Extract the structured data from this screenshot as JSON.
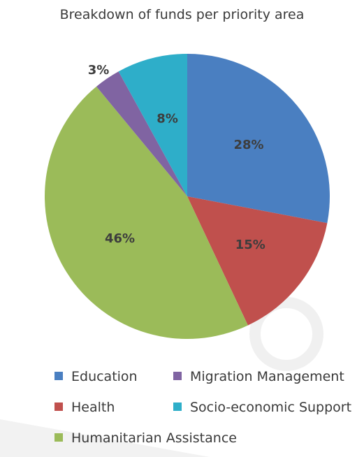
{
  "chart_data": {
    "type": "pie",
    "title": "Breakdown of funds per priority area",
    "slices": [
      {
        "label": "Education",
        "value": 28,
        "display": "28%",
        "color": "#4a7fc1"
      },
      {
        "label": "Health",
        "value": 15,
        "display": "15%",
        "color": "#c0504d"
      },
      {
        "label": "Humanitarian Assistance",
        "value": 46,
        "display": "46%",
        "color": "#9bbb59"
      },
      {
        "label": "Migration Management",
        "value": 3,
        "display": "3%",
        "color": "#8064a2"
      },
      {
        "label": "Socio-economic Support",
        "value": 8,
        "display": "8%",
        "color": "#2eaec9"
      }
    ],
    "legend_position": "bottom"
  }
}
